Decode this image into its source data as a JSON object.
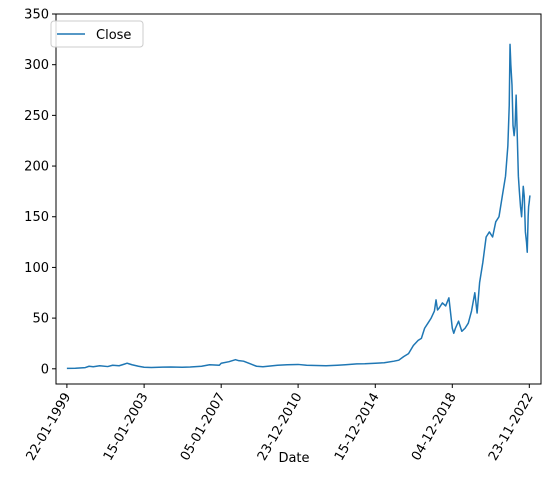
{
  "chart_data": {
    "type": "line",
    "title": "",
    "xlabel": "Date",
    "ylabel": "",
    "x_tick_labels": [
      "22-01-1999",
      "15-01-2003",
      "05-01-2007",
      "23-12-2010",
      "15-12-2014",
      "04-12-2018",
      "23-11-2022"
    ],
    "y_ticks": [
      0,
      50,
      100,
      150,
      200,
      250,
      300,
      350
    ],
    "ylim": [
      -15,
      350
    ],
    "xlim": [
      "1998-07-01",
      "2023-07-01"
    ],
    "grid": false,
    "legend": {
      "placement": "top-left",
      "entries": [
        "Close"
      ]
    },
    "series": [
      {
        "name": "Close",
        "color": "#1f77b4",
        "points": [
          [
            "1999-01-22",
            0.4
          ],
          [
            "1999-07-01",
            0.5
          ],
          [
            "2000-01-03",
            1.2
          ],
          [
            "2000-03-15",
            2.5
          ],
          [
            "2000-06-01",
            2.0
          ],
          [
            "2000-10-01",
            3.0
          ],
          [
            "2001-03-01",
            2.2
          ],
          [
            "2001-06-01",
            3.5
          ],
          [
            "2001-10-01",
            3.0
          ],
          [
            "2002-01-01",
            4.5
          ],
          [
            "2002-03-01",
            5.5
          ],
          [
            "2002-06-01",
            4.0
          ],
          [
            "2002-10-01",
            2.5
          ],
          [
            "2003-01-15",
            1.5
          ],
          [
            "2003-06-01",
            1.3
          ],
          [
            "2004-01-01",
            1.6
          ],
          [
            "2004-06-01",
            1.8
          ],
          [
            "2005-01-01",
            1.5
          ],
          [
            "2005-06-01",
            1.8
          ],
          [
            "2006-01-01",
            2.5
          ],
          [
            "2006-06-01",
            4.0
          ],
          [
            "2006-12-01",
            3.5
          ],
          [
            "2007-01-05",
            5.5
          ],
          [
            "2007-06-01",
            7.0
          ],
          [
            "2007-10-01",
            9.0
          ],
          [
            "2007-12-01",
            8.0
          ],
          [
            "2008-03-01",
            7.5
          ],
          [
            "2008-07-01",
            5.0
          ],
          [
            "2008-11-01",
            2.5
          ],
          [
            "2009-03-01",
            2.0
          ],
          [
            "2009-06-01",
            2.5
          ],
          [
            "2009-12-01",
            3.5
          ],
          [
            "2010-06-01",
            4.0
          ],
          [
            "2010-12-23",
            4.3
          ],
          [
            "2011-06-01",
            3.5
          ],
          [
            "2011-12-01",
            3.2
          ],
          [
            "2012-06-01",
            3.0
          ],
          [
            "2013-01-01",
            3.5
          ],
          [
            "2013-06-01",
            4.0
          ],
          [
            "2014-01-01",
            4.8
          ],
          [
            "2014-06-01",
            5.0
          ],
          [
            "2014-12-15",
            5.5
          ],
          [
            "2015-06-01",
            6.0
          ],
          [
            "2015-12-01",
            7.5
          ],
          [
            "2016-03-01",
            8.5
          ],
          [
            "2016-06-01",
            12.0
          ],
          [
            "2016-09-01",
            15.0
          ],
          [
            "2016-12-01",
            23.0
          ],
          [
            "2017-03-01",
            28.0
          ],
          [
            "2017-05-01",
            30.0
          ],
          [
            "2017-07-01",
            40.0
          ],
          [
            "2017-09-01",
            45.0
          ],
          [
            "2017-11-01",
            50.0
          ],
          [
            "2018-01-01",
            57.0
          ],
          [
            "2018-02-01",
            68.0
          ],
          [
            "2018-03-01",
            58.0
          ],
          [
            "2018-04-01",
            60.0
          ],
          [
            "2018-06-01",
            65.0
          ],
          [
            "2018-08-01",
            62.0
          ],
          [
            "2018-10-01",
            70.0
          ],
          [
            "2018-12-04",
            40.0
          ],
          [
            "2019-01-01",
            35.0
          ],
          [
            "2019-02-01",
            40.0
          ],
          [
            "2019-04-01",
            47.0
          ],
          [
            "2019-06-01",
            37.0
          ],
          [
            "2019-08-01",
            40.0
          ],
          [
            "2019-10-01",
            45.0
          ],
          [
            "2019-12-01",
            57.0
          ],
          [
            "2020-02-01",
            75.0
          ],
          [
            "2020-03-15",
            55.0
          ],
          [
            "2020-05-01",
            85.0
          ],
          [
            "2020-07-01",
            105.0
          ],
          [
            "2020-09-01",
            130.0
          ],
          [
            "2020-11-01",
            135.0
          ],
          [
            "2021-01-01",
            130.0
          ],
          [
            "2021-03-01",
            145.0
          ],
          [
            "2021-05-01",
            150.0
          ],
          [
            "2021-07-01",
            170.0
          ],
          [
            "2021-09-01",
            190.0
          ],
          [
            "2021-10-15",
            220.0
          ],
          [
            "2021-11-10",
            260.0
          ],
          [
            "2021-11-25",
            320.0
          ],
          [
            "2021-12-10",
            300.0
          ],
          [
            "2022-01-01",
            280.0
          ],
          [
            "2022-01-20",
            240.0
          ],
          [
            "2022-02-10",
            230.0
          ],
          [
            "2022-03-01",
            240.0
          ],
          [
            "2022-03-20",
            270.0
          ],
          [
            "2022-04-10",
            230.0
          ],
          [
            "2022-05-01",
            190.0
          ],
          [
            "2022-05-20",
            175.0
          ],
          [
            "2022-06-10",
            160.0
          ],
          [
            "2022-07-01",
            150.0
          ],
          [
            "2022-08-01",
            180.0
          ],
          [
            "2022-08-20",
            170.0
          ],
          [
            "2022-09-10",
            135.0
          ],
          [
            "2022-10-01",
            125.0
          ],
          [
            "2022-10-15",
            115.0
          ],
          [
            "2022-11-01",
            150.0
          ],
          [
            "2022-11-10",
            160.0
          ],
          [
            "2022-11-23",
            165.0
          ],
          [
            "2022-11-28",
            168.0
          ],
          [
            "2022-12-05",
            171.0
          ]
        ]
      }
    ]
  }
}
